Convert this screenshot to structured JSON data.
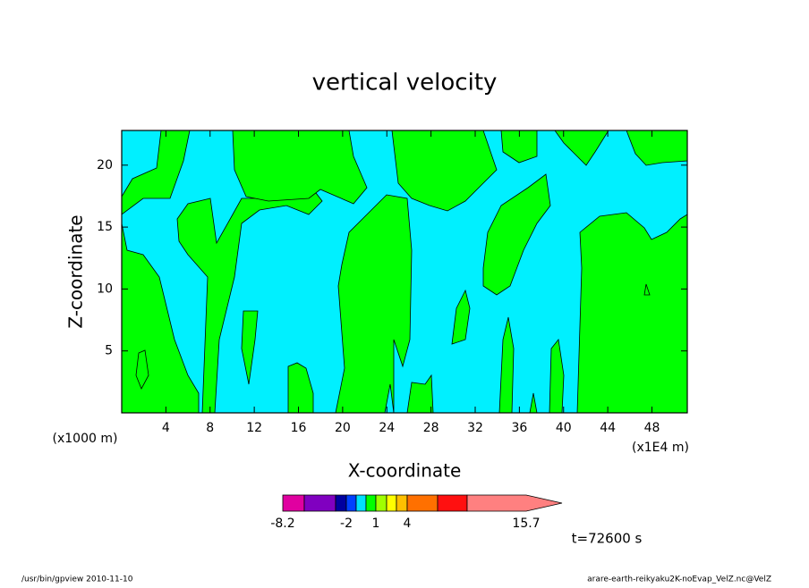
{
  "chart_data": {
    "type": "contour",
    "title": "vertical velocity",
    "xlabel": "X-coordinate",
    "ylabel": "Z-coordinate",
    "x_unit": "(x1E4 m)",
    "y_unit": "(x1000 m)",
    "xlim": [
      0,
      51.2
    ],
    "ylim": [
      0,
      22.8
    ],
    "xticks": [
      4,
      8,
      12,
      16,
      20,
      24,
      28,
      32,
      36,
      40,
      44,
      48
    ],
    "yticks": [
      5,
      10,
      15,
      20
    ],
    "colorbar": {
      "colors": [
        "#e000a0",
        "#8000c0",
        "#0000a0",
        "#0040ff",
        "#00e0ff",
        "#00ff00",
        "#a0ff00",
        "#ffff00",
        "#ffc000",
        "#ff7000",
        "#ff1010",
        "#ff8080"
      ],
      "ticks": [
        -8.2,
        -2,
        1,
        4,
        15.7
      ]
    },
    "time_label": "t=72600 s",
    "footer_left": "/usr/bin/gpview   2010-11-10",
    "footer_right": "arare-earth-reikyaku2K-noEvap_VelZ.nc@VelZ"
  }
}
